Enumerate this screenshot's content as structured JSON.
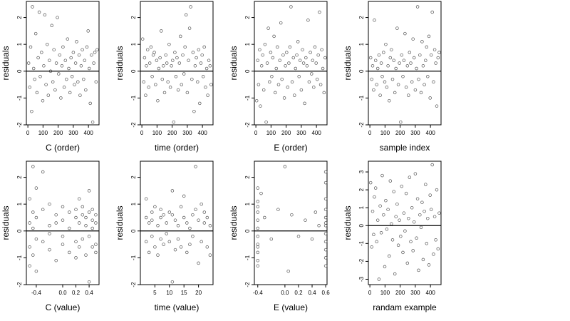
{
  "chart_data": [
    {
      "type": "scatter",
      "title": "",
      "xlabel": "C (order)",
      "ylabel": "residuals",
      "xlim": [
        -10,
        470
      ],
      "ylim": [
        -2,
        2.6
      ],
      "x_ticks": [
        0,
        100,
        200,
        300,
        400
      ],
      "x_tick_labels": [
        "0",
        "100",
        "200",
        "300",
        "400"
      ],
      "y_ticks": [
        -2,
        -1,
        0,
        1,
        2
      ],
      "y_tick_labels": [
        "-2",
        "-1",
        "0",
        "1",
        "2"
      ],
      "hline": 0,
      "points": {
        "x": [
          5,
          12,
          18,
          25,
          30,
          38,
          45,
          52,
          60,
          68,
          75,
          82,
          90,
          98,
          105,
          112,
          120,
          128,
          135,
          142,
          150,
          158,
          165,
          172,
          180,
          188,
          195,
          203,
          210,
          218,
          225,
          232,
          240,
          248,
          255,
          262,
          270,
          278,
          285,
          292,
          300,
          308,
          315,
          322,
          330,
          338,
          345,
          352,
          360,
          368,
          375,
          382,
          390,
          398,
          405,
          412,
          420,
          428,
          435,
          442,
          450,
          458
        ],
        "y": [
          0.3,
          -0.6,
          0.9,
          -1.5,
          2.4,
          0.1,
          -0.3,
          1.4,
          -0.8,
          0.5,
          2.2,
          -0.2,
          0.7,
          -1.1,
          0.2,
          2.1,
          -0.5,
          1.0,
          -0.9,
          0.4,
          0.0,
          1.7,
          -0.4,
          0.8,
          -0.7,
          0.3,
          2.0,
          -0.1,
          0.6,
          -1.0,
          0.2,
          0.9,
          -0.6,
          0.4,
          -0.3,
          1.2,
          0.1,
          -0.8,
          0.5,
          -0.2,
          0.7,
          -0.5,
          0.3,
          1.1,
          -0.4,
          0.6,
          -0.9,
          0.2,
          0.8,
          -0.3,
          0.4,
          -0.7,
          0.9,
          1.5,
          0.1,
          -1.2,
          0.6,
          -1.9,
          0.3,
          0.7,
          -0.4,
          0.8
        ]
      }
    },
    {
      "type": "scatter",
      "title": "",
      "xlabel": "time (order)",
      "ylabel": "residuals",
      "xlim": [
        -10,
        470
      ],
      "ylim": [
        -2,
        2.6
      ],
      "x_ticks": [
        0,
        100,
        200,
        300,
        400
      ],
      "x_tick_labels": [
        "0",
        "100",
        "200",
        "300",
        "400"
      ],
      "y_ticks": [
        -2,
        -1,
        0,
        1,
        2
      ],
      "y_tick_labels": [
        "-2",
        "-1",
        "0",
        "1",
        "2"
      ],
      "hline": 0,
      "points": {
        "x": [
          5,
          12,
          18,
          25,
          30,
          38,
          45,
          52,
          60,
          68,
          75,
          82,
          90,
          98,
          105,
          112,
          120,
          128,
          135,
          142,
          150,
          158,
          165,
          172,
          180,
          188,
          195,
          203,
          210,
          218,
          225,
          232,
          240,
          248,
          255,
          262,
          270,
          278,
          285,
          292,
          300,
          308,
          315,
          322,
          330,
          338,
          345,
          352,
          360,
          368,
          375,
          382,
          390,
          398,
          405,
          412,
          420,
          428,
          435,
          442,
          450,
          458
        ],
        "y": [
          1.2,
          -0.4,
          0.5,
          -0.9,
          0.2,
          0.8,
          -0.6,
          0.3,
          0.9,
          -0.2,
          0.6,
          0.7,
          -0.5,
          0.4,
          -1.1,
          0.1,
          0.5,
          1.5,
          -0.3,
          0.2,
          -0.8,
          0.6,
          0.3,
          -0.4,
          1.0,
          -0.6,
          0.2,
          0.4,
          -1.9,
          0.7,
          -0.2,
          0.5,
          -0.7,
          0.3,
          1.3,
          -0.5,
          0.6,
          -0.1,
          0.9,
          2.1,
          -0.8,
          0.4,
          1.6,
          2.4,
          -0.3,
          0.7,
          -1.5,
          0.2,
          0.5,
          -0.4,
          0.8,
          -1.2,
          0.3,
          0.6,
          -0.2,
          0.9,
          -0.6,
          0.1,
          -0.9,
          0.4,
          0.2,
          -0.5
        ]
      }
    },
    {
      "type": "scatter",
      "title": "",
      "xlabel": "E (order)",
      "ylabel": "residuals",
      "xlim": [
        -10,
        470
      ],
      "ylim": [
        -2,
        2.6
      ],
      "x_ticks": [
        0,
        100,
        200,
        300,
        400
      ],
      "x_tick_labels": [
        "0",
        "100",
        "200",
        "300",
        "400"
      ],
      "y_ticks": [
        -2,
        -1,
        0,
        1,
        2
      ],
      "y_tick_labels": [
        "-2",
        "-1",
        "0",
        "1",
        "2"
      ],
      "hline": 0,
      "points": {
        "x": [
          5,
          12,
          18,
          25,
          30,
          38,
          45,
          52,
          60,
          68,
          75,
          82,
          90,
          98,
          105,
          112,
          120,
          128,
          135,
          142,
          150,
          158,
          165,
          172,
          180,
          188,
          195,
          203,
          210,
          218,
          225,
          232,
          240,
          248,
          255,
          262,
          270,
          278,
          285,
          292,
          300,
          308,
          315,
          322,
          330,
          338,
          345,
          352,
          360,
          368,
          375,
          382,
          390,
          398,
          405,
          412,
          420,
          428,
          435,
          442,
          450,
          458
        ],
        "y": [
          -1.1,
          0.4,
          -0.5,
          0.8,
          -1.3,
          0.2,
          0.6,
          -0.7,
          1.0,
          -1.9,
          0.3,
          1.6,
          -0.4,
          0.7,
          -0.2,
          0.5,
          1.3,
          -0.8,
          0.1,
          0.9,
          -0.5,
          0.4,
          1.8,
          -0.3,
          0.6,
          -1.0,
          0.2,
          0.7,
          -0.6,
          0.3,
          0.9,
          2.4,
          -0.4,
          0.5,
          -0.9,
          0.1,
          0.6,
          1.1,
          -0.2,
          0.4,
          -0.7,
          0.8,
          0.3,
          -1.2,
          0.5,
          0.2,
          1.9,
          -0.4,
          0.7,
          -0.1,
          0.4,
          -0.6,
          0.9,
          0.3,
          -0.3,
          0.6,
          2.2,
          -0.5,
          0.8,
          0.1,
          -0.8,
          0.5
        ]
      }
    },
    {
      "type": "scatter",
      "title": "",
      "xlabel": "sample index",
      "ylabel": "residuals",
      "xlim": [
        -10,
        470
      ],
      "ylim": [
        -2,
        2.6
      ],
      "x_ticks": [
        0,
        100,
        200,
        300,
        400
      ],
      "x_tick_labels": [
        "0",
        "100",
        "200",
        "300",
        "400"
      ],
      "y_ticks": [
        -2,
        -1,
        0,
        1,
        2
      ],
      "y_tick_labels": [
        "-2",
        "-1",
        "0",
        "1",
        "2"
      ],
      "hline": 0,
      "points": {
        "x": [
          5,
          12,
          18,
          25,
          30,
          38,
          45,
          52,
          60,
          68,
          75,
          82,
          90,
          98,
          105,
          112,
          120,
          128,
          135,
          142,
          150,
          158,
          165,
          172,
          180,
          188,
          195,
          203,
          210,
          218,
          225,
          232,
          240,
          248,
          255,
          262,
          270,
          278,
          285,
          292,
          300,
          308,
          315,
          322,
          330,
          338,
          345,
          352,
          360,
          368,
          375,
          382,
          390,
          398,
          405,
          412,
          420,
          428,
          435,
          442,
          450,
          458
        ],
        "y": [
          0.5,
          -0.3,
          0.2,
          -0.7,
          1.9,
          0.4,
          -0.5,
          0.1,
          0.6,
          -0.9,
          0.3,
          -0.2,
          0.7,
          -0.4,
          1.0,
          -0.6,
          0.2,
          -1.1,
          0.5,
          0.8,
          -0.3,
          0.4,
          -0.8,
          0.1,
          1.6,
          -0.5,
          0.3,
          -1.9,
          0.6,
          -0.2,
          0.4,
          1.4,
          -0.6,
          0.2,
          -0.9,
          0.7,
          0.3,
          -0.4,
          1.2,
          0.5,
          -0.7,
          0.1,
          2.4,
          -0.3,
          0.6,
          -0.8,
          1.1,
          0.2,
          -0.5,
          0.4,
          0.9,
          -0.2,
          1.3,
          -1.0,
          0.6,
          2.2,
          -0.4,
          0.8,
          0.3,
          -1.3,
          0.5,
          0.7
        ]
      }
    },
    {
      "type": "scatter",
      "title": "",
      "xlabel": "C (value)",
      "ylabel": "residuals",
      "xlim": [
        -0.55,
        0.55
      ],
      "ylim": [
        -2,
        2.6
      ],
      "x_ticks": [
        -0.4,
        0.0,
        0.2,
        0.4
      ],
      "x_tick_labels": [
        "-0.4",
        "0.0",
        "0.2",
        "0.4"
      ],
      "y_ticks": [
        -2,
        -1,
        0,
        1,
        2
      ],
      "y_tick_labels": [
        "-2",
        "-1",
        "0",
        "1",
        "2"
      ],
      "hline": 0,
      "points": {
        "x": [
          -0.5,
          -0.5,
          -0.5,
          -0.5,
          -0.45,
          -0.45,
          -0.45,
          -0.45,
          -0.4,
          -0.4,
          -0.4,
          -0.4,
          -0.3,
          -0.3,
          -0.3,
          -0.2,
          -0.2,
          -0.2,
          -0.2,
          -0.1,
          -0.1,
          -0.1,
          0.0,
          0.0,
          0.0,
          0.0,
          0.1,
          0.1,
          0.1,
          0.2,
          0.2,
          0.2,
          0.2,
          0.25,
          0.25,
          0.25,
          0.3,
          0.3,
          0.3,
          0.35,
          0.35,
          0.35,
          0.4,
          0.4,
          0.4,
          0.4,
          0.45,
          0.45,
          0.45,
          0.45,
          0.5,
          0.5,
          0.5,
          0.5
        ],
        "y": [
          0.3,
          -0.6,
          1.2,
          -1.3,
          2.4,
          0.1,
          -0.9,
          0.7,
          0.5,
          -0.3,
          1.6,
          -1.5,
          -0.4,
          0.8,
          2.2,
          0.2,
          -0.7,
          1.0,
          -0.1,
          0.6,
          -1.1,
          0.3,
          0.4,
          -0.5,
          0.9,
          -0.2,
          0.7,
          -0.8,
          0.1,
          0.5,
          -0.4,
          0.8,
          -1.0,
          0.3,
          1.2,
          -0.6,
          0.6,
          -0.3,
          0.9,
          0.2,
          -0.9,
          0.5,
          0.7,
          -0.2,
          1.5,
          -1.9,
          0.4,
          -0.6,
          0.8,
          0.1,
          0.6,
          -0.5,
          0.3,
          -0.8
        ]
      }
    },
    {
      "type": "scatter",
      "title": "",
      "xlabel": "time (value)",
      "ylabel": "residuals",
      "xlim": [
        0,
        25
      ],
      "ylim": [
        -2,
        2.6
      ],
      "x_ticks": [
        5,
        10,
        15,
        20
      ],
      "x_tick_labels": [
        "5",
        "10",
        "15",
        "20"
      ],
      "y_ticks": [
        -2,
        -1,
        0,
        1,
        2
      ],
      "y_tick_labels": [
        "-2",
        "-1",
        "0",
        "1",
        "2"
      ],
      "hline": 0,
      "points": {
        "x": [
          2,
          2,
          2,
          3,
          3,
          4,
          4,
          4,
          5,
          5,
          6,
          6,
          7,
          7,
          7,
          8,
          8,
          9,
          9,
          10,
          10,
          11,
          11,
          11,
          12,
          12,
          13,
          13,
          14,
          14,
          15,
          15,
          16,
          16,
          17,
          17,
          18,
          18,
          19,
          19,
          20,
          20,
          21,
          21,
          22,
          22,
          23,
          23,
          24,
          24
        ],
        "y": [
          1.2,
          -0.4,
          0.5,
          -0.8,
          0.3,
          0.7,
          -0.2,
          0.4,
          -0.6,
          0.9,
          0.2,
          -0.9,
          0.8,
          -0.3,
          0.5,
          0.6,
          -0.5,
          0.3,
          -0.1,
          0.7,
          -0.4,
          1.5,
          -1.9,
          0.6,
          -0.7,
          0.4,
          0.2,
          -0.3,
          0.9,
          -0.6,
          0.5,
          1.3,
          -0.8,
          0.3,
          0.1,
          -0.5,
          0.6,
          -0.2,
          2.4,
          0.8,
          -1.2,
          0.4,
          1.0,
          -0.4,
          0.3,
          0.7,
          -0.6,
          0.5,
          0.2,
          -0.9
        ]
      }
    },
    {
      "type": "scatter",
      "title": "",
      "xlabel": "E (value)",
      "ylabel": "residuals",
      "xlim": [
        -0.45,
        0.62
      ],
      "ylim": [
        -2,
        2.6
      ],
      "x_ticks": [
        -0.4,
        0.0,
        0.2,
        0.4,
        0.6
      ],
      "x_tick_labels": [
        "-0.4",
        "0.0",
        "0.2",
        "0.4",
        "0.6"
      ],
      "y_ticks": [
        -2,
        -1,
        0,
        1,
        2
      ],
      "y_tick_labels": [
        "-2",
        "-1",
        "0",
        "1",
        "2"
      ],
      "hline": 0,
      "points": {
        "x": [
          -0.4,
          -0.4,
          -0.4,
          -0.4,
          -0.4,
          -0.4,
          -0.4,
          -0.4,
          -0.4,
          -0.4,
          -0.4,
          -0.4,
          -0.35,
          -0.3,
          -0.2,
          -0.1,
          0.0,
          0.05,
          0.1,
          0.2,
          0.3,
          0.4,
          0.45,
          0.5,
          0.6,
          0.6,
          0.6,
          0.6,
          0.6,
          0.6,
          0.6,
          0.6,
          0.6,
          0.6,
          0.6,
          0.6
        ],
        "y": [
          1.6,
          1.1,
          0.7,
          0.4,
          0.1,
          -0.2,
          -0.5,
          -0.8,
          -1.1,
          -1.3,
          0.9,
          -0.6,
          1.4,
          0.5,
          -0.3,
          0.8,
          2.4,
          -1.5,
          0.6,
          -0.2,
          0.4,
          -0.3,
          0.7,
          0.2,
          2.2,
          1.8,
          1.2,
          0.8,
          0.5,
          0.2,
          -0.1,
          -0.4,
          -0.7,
          -1.0,
          -1.3,
          0.3
        ]
      }
    },
    {
      "type": "scatter",
      "title": "",
      "xlabel": "randam example",
      "ylabel": "residuals",
      "xlim": [
        -10,
        470
      ],
      "ylim": [
        -3.3,
        3.6
      ],
      "x_ticks": [
        0,
        100,
        200,
        300,
        400
      ],
      "x_tick_labels": [
        "0",
        "100",
        "200",
        "300",
        "400"
      ],
      "y_ticks": [
        -3,
        -2,
        -1,
        0,
        1,
        2,
        3
      ],
      "y_tick_labels": [
        "-3",
        "-2",
        "-1",
        "0",
        "1",
        "2",
        "3"
      ],
      "hline": 0,
      "points": {
        "x": [
          5,
          12,
          18,
          25,
          30,
          38,
          45,
          52,
          60,
          68,
          75,
          82,
          90,
          98,
          105,
          112,
          120,
          128,
          135,
          142,
          150,
          158,
          165,
          172,
          180,
          188,
          195,
          203,
          210,
          218,
          225,
          232,
          240,
          248,
          255,
          262,
          270,
          278,
          285,
          292,
          300,
          308,
          315,
          322,
          330,
          338,
          345,
          352,
          360,
          368,
          375,
          382,
          390,
          398,
          405,
          412,
          420,
          428,
          435,
          442,
          450,
          458
        ],
        "y": [
          2.4,
          -1.2,
          0.8,
          -0.5,
          1.6,
          2.1,
          -0.9,
          0.3,
          -3.0,
          1.1,
          -0.4,
          2.8,
          0.6,
          -2.3,
          1.4,
          -0.2,
          0.9,
          -1.7,
          2.5,
          0.1,
          -0.8,
          1.9,
          -2.7,
          0.5,
          1.2,
          -1.1,
          0.3,
          -0.6,
          2.2,
          -1.5,
          0.7,
          -0.3,
          1.8,
          -2.1,
          0.4,
          2.7,
          -0.9,
          1.0,
          -1.4,
          0.2,
          2.9,
          -0.7,
          1.5,
          -2.5,
          0.6,
          -0.1,
          1.3,
          -1.9,
          0.8,
          2.3,
          -1.0,
          0.4,
          -2.2,
          1.7,
          0.9,
          3.4,
          -1.6,
          0.5,
          -0.8,
          2.0,
          -1.3,
          0.7
        ]
      }
    }
  ]
}
